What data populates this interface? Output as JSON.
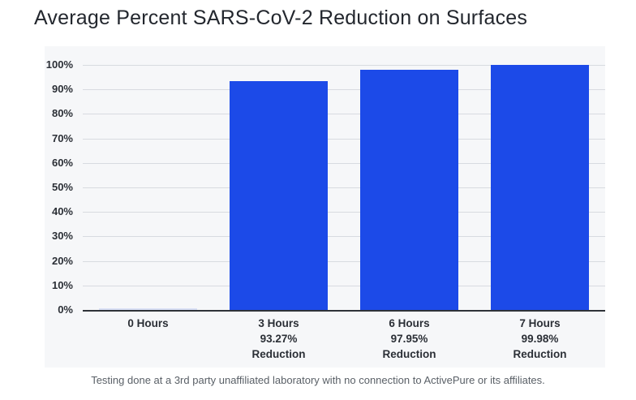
{
  "title": "Average Percent SARS-CoV-2 Reduction on Surfaces",
  "footnote": "Testing done at a 3rd party unaffiliated laboratory with no connection to ActivePure or its affiliates.",
  "colors": {
    "bar": "#1c4ae8",
    "zero_bar": "#d9dff6",
    "panel_background": "#f6f7f9",
    "gridline": "#d8dbe0",
    "baseline": "#2f3338",
    "axis_text": "#2b2f36",
    "title_text": "#23272e",
    "footnote_text": "#5a6067"
  },
  "chart_data": {
    "type": "bar",
    "title": "Average Percent SARS-CoV-2 Reduction on Surfaces",
    "categories": [
      "0 Hours",
      "3 Hours",
      "6 Hours",
      "7 Hours"
    ],
    "values": [
      0,
      93.27,
      97.95,
      99.98
    ],
    "bar_labels": [
      [
        "0 Hours"
      ],
      [
        "3 Hours",
        "93.27%",
        "Reduction"
      ],
      [
        "6 Hours",
        "97.95%",
        "Reduction"
      ],
      [
        "7 Hours",
        "99.98%",
        "Reduction"
      ]
    ],
    "xlabel": "",
    "ylabel": "",
    "ylim": [
      0,
      100
    ],
    "yticks": [
      "0%",
      "10%",
      "20%",
      "30%",
      "40%",
      "50%",
      "60%",
      "70%",
      "80%",
      "90%",
      "100%"
    ],
    "grid": true,
    "legend_position": "none",
    "footnote": "Testing done at a 3rd party unaffiliated laboratory with no connection to ActivePure or its affiliates."
  }
}
